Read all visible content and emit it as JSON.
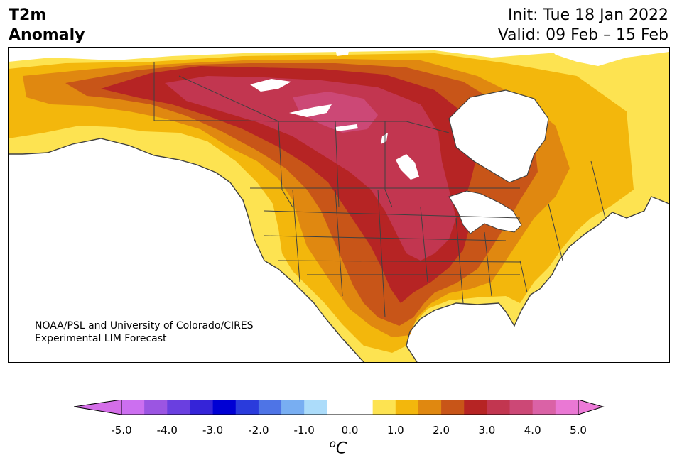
{
  "title": {
    "line1": "T2m",
    "line2": "Anomaly"
  },
  "init": {
    "line1": "Init: Tue 18 Jan 2022",
    "line2": "Valid: 09 Feb – 15 Feb"
  },
  "credit": {
    "line1": "NOAA/PSL and University of Colorado/CIRES",
    "line2": "Experimental LIM Forecast"
  },
  "colorbar": {
    "unit_base": "C",
    "unit_sup": "o",
    "tick_labels": [
      "-5.0",
      "-4.0",
      "-3.0",
      "-2.0",
      "-1.0",
      "0.0",
      "1.0",
      "2.0",
      "3.0",
      "4.0",
      "5.0"
    ],
    "under_color": "#d46ee8",
    "over_color": "#ec7ad8",
    "bins": [
      "#cc6ff0",
      "#9b55e2",
      "#6a3fe0",
      "#3524d8",
      "#0000d4",
      "#2a3bdc",
      "#4e74e6",
      "#78aef2",
      "#acdcfa",
      "#ffffff",
      "#ffffff",
      "#fde351",
      "#f3b70c",
      "#e08810",
      "#c85518",
      "#b62424",
      "#c23650",
      "#cc4876",
      "#da62a6",
      "#ea78d4"
    ]
  },
  "colors": {
    "ocean": "#ffffff",
    "coast": "#404040",
    "band_1_0": "#fde351",
    "band_1_5": "#f3b70c",
    "band_2_0": "#e08810",
    "band_2_5": "#c85518",
    "band_3_0": "#b62424",
    "band_3_5": "#c23650",
    "band_4_0": "#cc4876"
  }
}
